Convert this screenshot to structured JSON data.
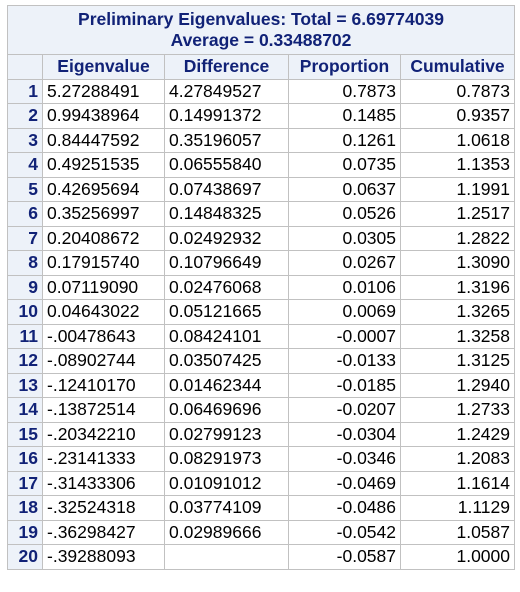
{
  "title": {
    "line1": "Preliminary Eigenvalues: Total = 6.69774039",
    "line2": "Average = 0.33488702"
  },
  "columns": [
    "Eigenvalue",
    "Difference",
    "Proportion",
    "Cumulative"
  ],
  "rows": [
    {
      "n": "1",
      "eigenvalue": "5.27288491",
      "difference": "4.27849527",
      "proportion": "0.7873",
      "cumulative": "0.7873"
    },
    {
      "n": "2",
      "eigenvalue": "0.99438964",
      "difference": "0.14991372",
      "proportion": "0.1485",
      "cumulative": "0.9357"
    },
    {
      "n": "3",
      "eigenvalue": "0.84447592",
      "difference": "0.35196057",
      "proportion": "0.1261",
      "cumulative": "1.0618"
    },
    {
      "n": "4",
      "eigenvalue": "0.49251535",
      "difference": "0.06555840",
      "proportion": "0.0735",
      "cumulative": "1.1353"
    },
    {
      "n": "5",
      "eigenvalue": "0.42695694",
      "difference": "0.07438697",
      "proportion": "0.0637",
      "cumulative": "1.1991"
    },
    {
      "n": "6",
      "eigenvalue": "0.35256997",
      "difference": "0.14848325",
      "proportion": "0.0526",
      "cumulative": "1.2517"
    },
    {
      "n": "7",
      "eigenvalue": "0.20408672",
      "difference": "0.02492932",
      "proportion": "0.0305",
      "cumulative": "1.2822"
    },
    {
      "n": "8",
      "eigenvalue": "0.17915740",
      "difference": "0.10796649",
      "proportion": "0.0267",
      "cumulative": "1.3090"
    },
    {
      "n": "9",
      "eigenvalue": "0.07119090",
      "difference": "0.02476068",
      "proportion": "0.0106",
      "cumulative": "1.3196"
    },
    {
      "n": "10",
      "eigenvalue": "0.04643022",
      "difference": "0.05121665",
      "proportion": "0.0069",
      "cumulative": "1.3265"
    },
    {
      "n": "11",
      "eigenvalue": "-.00478643",
      "difference": "0.08424101",
      "proportion": "-0.0007",
      "cumulative": "1.3258"
    },
    {
      "n": "12",
      "eigenvalue": "-.08902744",
      "difference": "0.03507425",
      "proportion": "-0.0133",
      "cumulative": "1.3125"
    },
    {
      "n": "13",
      "eigenvalue": "-.12410170",
      "difference": "0.01462344",
      "proportion": "-0.0185",
      "cumulative": "1.2940"
    },
    {
      "n": "14",
      "eigenvalue": "-.13872514",
      "difference": "0.06469696",
      "proportion": "-0.0207",
      "cumulative": "1.2733"
    },
    {
      "n": "15",
      "eigenvalue": "-.20342210",
      "difference": "0.02799123",
      "proportion": "-0.0304",
      "cumulative": "1.2429"
    },
    {
      "n": "16",
      "eigenvalue": "-.23141333",
      "difference": "0.08291973",
      "proportion": "-0.0346",
      "cumulative": "1.2083"
    },
    {
      "n": "17",
      "eigenvalue": "-.31433306",
      "difference": "0.01091012",
      "proportion": "-0.0469",
      "cumulative": "1.1614"
    },
    {
      "n": "18",
      "eigenvalue": "-.32524318",
      "difference": "0.03774109",
      "proportion": "-0.0486",
      "cumulative": "1.1129"
    },
    {
      "n": "19",
      "eigenvalue": "-.36298427",
      "difference": "0.02989666",
      "proportion": "-0.0542",
      "cumulative": "1.0587"
    },
    {
      "n": "20",
      "eigenvalue": "-.39288093",
      "difference": "",
      "proportion": "-0.0587",
      "cumulative": "1.0000"
    }
  ],
  "colors": {
    "header_bg": "#edf2f9",
    "header_text": "#112277",
    "grid_border": "#c1c1c1",
    "body_text": "#000000"
  }
}
